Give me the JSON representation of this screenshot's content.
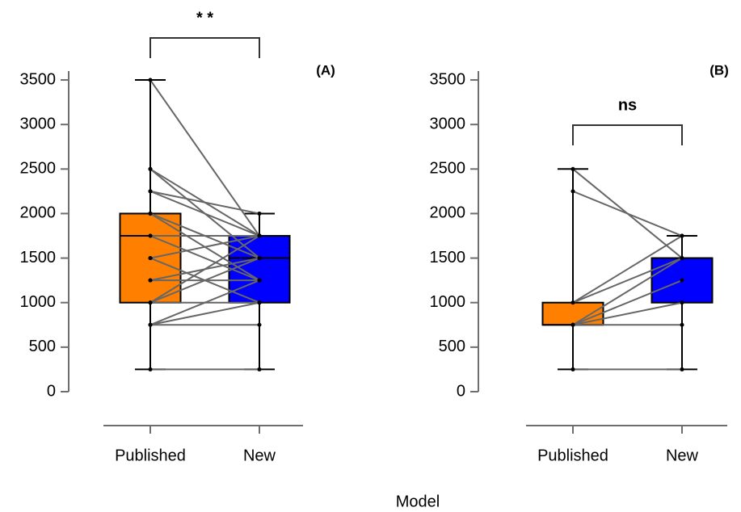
{
  "x_label": "Model",
  "chart_data": [
    {
      "type": "box",
      "panel_label": "(A)",
      "annotation": "* *",
      "categories": [
        "Published",
        "New"
      ],
      "colors": [
        "#ff8000",
        "#0000ff"
      ],
      "ylim": [
        0,
        3600
      ],
      "yticks": [
        0,
        500,
        1000,
        1500,
        2000,
        2500,
        3000,
        3500
      ],
      "boxes": [
        {
          "min": 250,
          "q1": 1000,
          "median": 1750,
          "q3": 2000,
          "max": 3500
        },
        {
          "min": 250,
          "q1": 1000,
          "median": 1500,
          "q3": 1750,
          "max": 2000
        }
      ],
      "points": [
        [
          3500,
          2500,
          2500,
          2250,
          2250,
          2000,
          2000,
          1750,
          1750,
          1500,
          1500,
          1250,
          1250,
          1000,
          1000,
          1000,
          750,
          750,
          750,
          250
        ],
        [
          1750,
          1500,
          1750,
          2000,
          1750,
          1500,
          1250,
          1250,
          1750,
          1000,
          1750,
          1250,
          1500,
          1500,
          1750,
          1000,
          1000,
          750,
          1250,
          250
        ]
      ]
    },
    {
      "type": "box",
      "panel_label": "(B)",
      "annotation": "ns",
      "categories": [
        "Published",
        "New"
      ],
      "colors": [
        "#ff8000",
        "#0000ff"
      ],
      "ylim": [
        0,
        3600
      ],
      "yticks": [
        0,
        500,
        1000,
        1500,
        2000,
        2500,
        3000,
        3500
      ],
      "boxes": [
        {
          "min": 250,
          "q1": 750,
          "median": 750,
          "q3": 1000,
          "max": 2500
        },
        {
          "min": 250,
          "q1": 1000,
          "median": 1500,
          "q3": 1500,
          "max": 1750
        }
      ],
      "points": [
        [
          2500,
          2250,
          1000,
          1000,
          750,
          750,
          750,
          750,
          250
        ],
        [
          1500,
          1750,
          1500,
          1750,
          1500,
          1250,
          750,
          1000,
          250
        ]
      ]
    }
  ]
}
